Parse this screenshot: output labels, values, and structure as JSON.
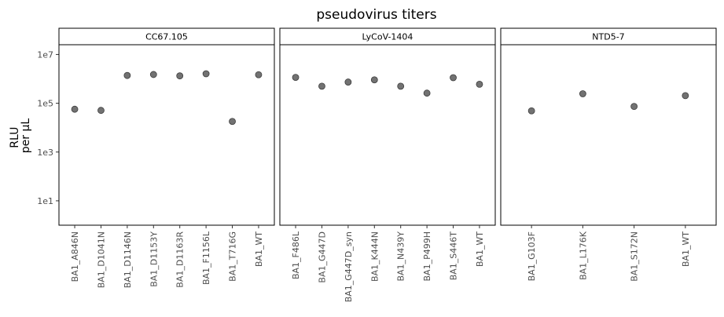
{
  "chart_data": {
    "type": "scatter",
    "title": "pseudovirus titers",
    "ylabel_lines": [
      "RLU",
      "per µL"
    ],
    "yscale": "log10",
    "ylim_log10": [
      0.0,
      7.4
    ],
    "yticks": [
      {
        "value": 10,
        "label": "1e1"
      },
      {
        "value": 1000,
        "label": "1e3"
      },
      {
        "value": 100000,
        "label": "1e5"
      },
      {
        "value": 10000000,
        "label": "1e7"
      }
    ],
    "grid": false,
    "panels": [
      {
        "name": "CC67.105",
        "points": [
          {
            "x": "BA1_A846N",
            "y": 57000
          },
          {
            "x": "BA1_D1041N",
            "y": 51000
          },
          {
            "x": "BA1_D1146N",
            "y": 1380000
          },
          {
            "x": "BA1_D1153Y",
            "y": 1510000
          },
          {
            "x": "BA1_D1163R",
            "y": 1330000
          },
          {
            "x": "BA1_F1156L",
            "y": 1620000
          },
          {
            "x": "BA1_T716G",
            "y": 18000
          },
          {
            "x": "BA1_WT",
            "y": 1480000
          }
        ]
      },
      {
        "name": "LyCoV-1404",
        "points": [
          {
            "x": "BA1_F486L",
            "y": 1150000
          },
          {
            "x": "BA1_G447D",
            "y": 500000
          },
          {
            "x": "BA1_G447D_syn",
            "y": 740000
          },
          {
            "x": "BA1_K444N",
            "y": 910000
          },
          {
            "x": "BA1_N439Y",
            "y": 500000
          },
          {
            "x": "BA1_P499H",
            "y": 260000
          },
          {
            "x": "BA1_S446T",
            "y": 1120000
          },
          {
            "x": "BA1_WT",
            "y": 600000
          }
        ]
      },
      {
        "name": "NTD5-7",
        "points": [
          {
            "x": "BA1_G103F",
            "y": 49000
          },
          {
            "x": "BA1_L176K",
            "y": 245000
          },
          {
            "x": "BA1_S172N",
            "y": 74000
          },
          {
            "x": "BA1_WT",
            "y": 205000
          }
        ]
      }
    ]
  }
}
